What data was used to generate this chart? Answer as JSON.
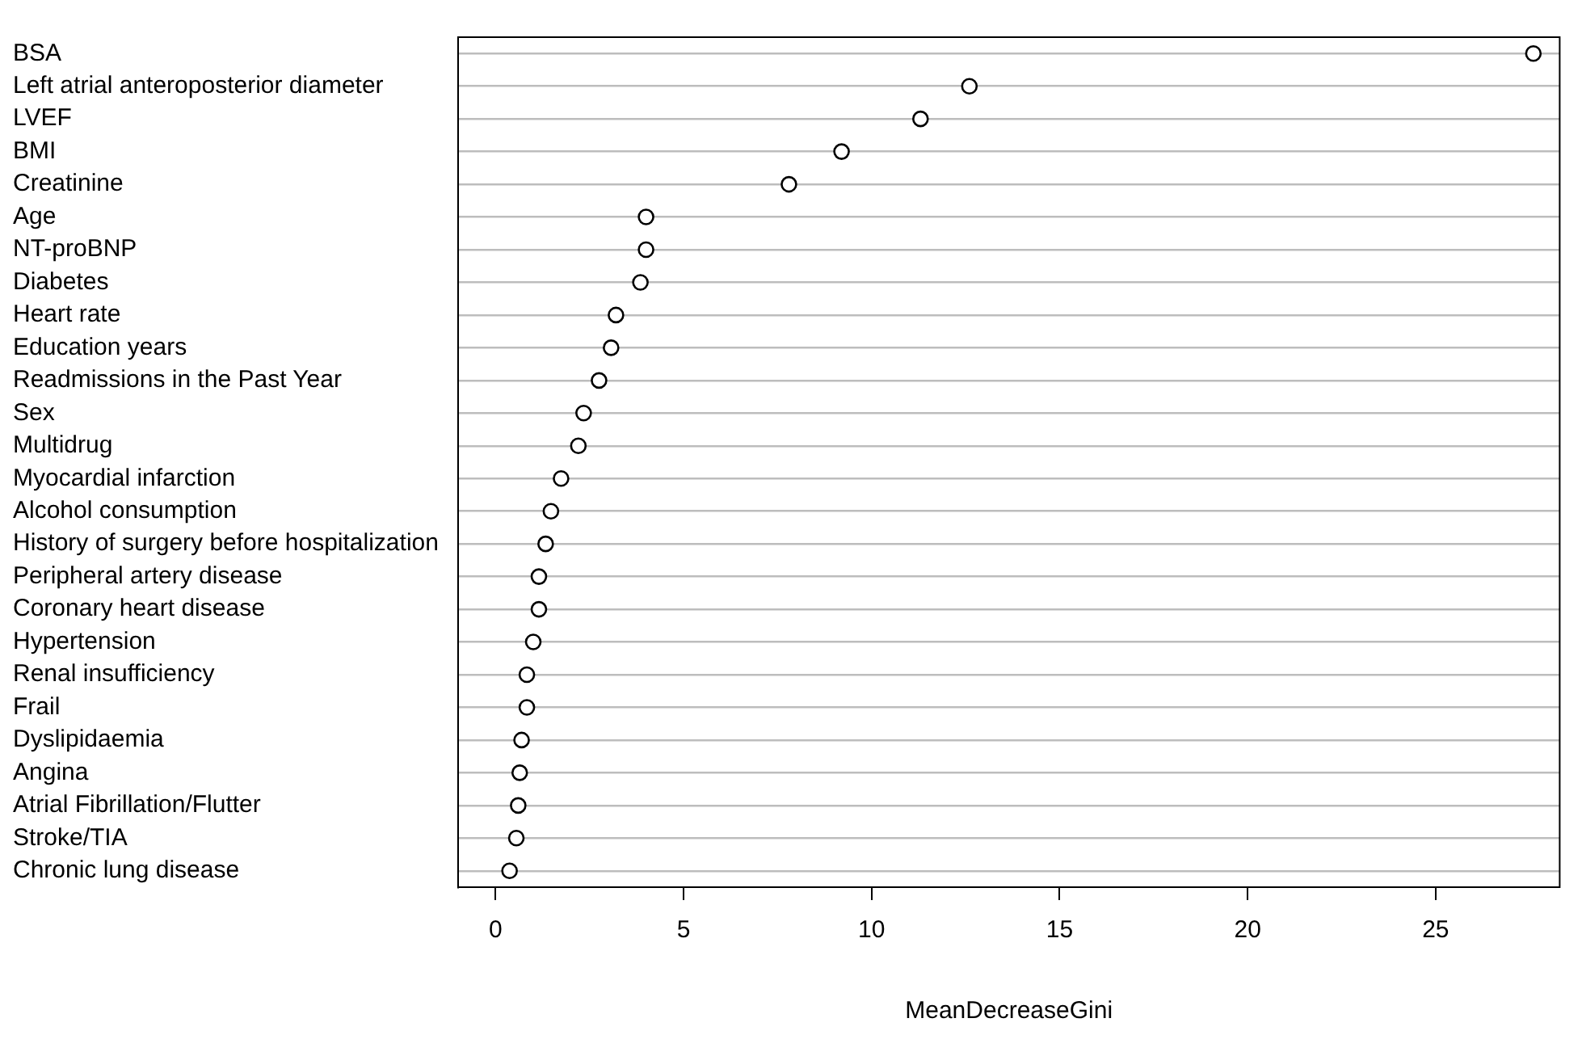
{
  "chart_data": {
    "type": "scatter",
    "orientation": "horizontal",
    "xlabel": "MeanDecreaseGini",
    "categories": [
      "BSA",
      "Left atrial anteroposterior diameter",
      "LVEF",
      "BMI",
      "Creatinine",
      "Age",
      "NT-proBNP",
      "Diabetes",
      "Heart rate",
      "Education years",
      "Readmissions in the Past Year",
      "Sex",
      "Multidrug",
      "Myocardial infarction",
      "Alcohol consumption",
      "History of surgery before hospitalization",
      "Peripheral artery disease",
      "Coronary heart disease",
      "Hypertension",
      "Renal insufficiency",
      "Frail",
      "Dyslipidaemia",
      "Angina",
      "Atrial Fibrillation/Flutter",
      "Stroke/TIA",
      "Chronic lung disease"
    ],
    "values": [
      27.6,
      12.6,
      11.3,
      9.2,
      7.8,
      4.0,
      4.0,
      3.85,
      3.2,
      3.07,
      2.75,
      2.34,
      2.2,
      1.74,
      1.47,
      1.33,
      1.15,
      1.15,
      1.0,
      0.83,
      0.83,
      0.69,
      0.64,
      0.6,
      0.55,
      0.37
    ],
    "color": "#000000",
    "marker": "circle",
    "grid": "y",
    "xlim": [
      -1,
      28.3
    ],
    "xticks": [
      0,
      5,
      10,
      15,
      20,
      25
    ]
  }
}
